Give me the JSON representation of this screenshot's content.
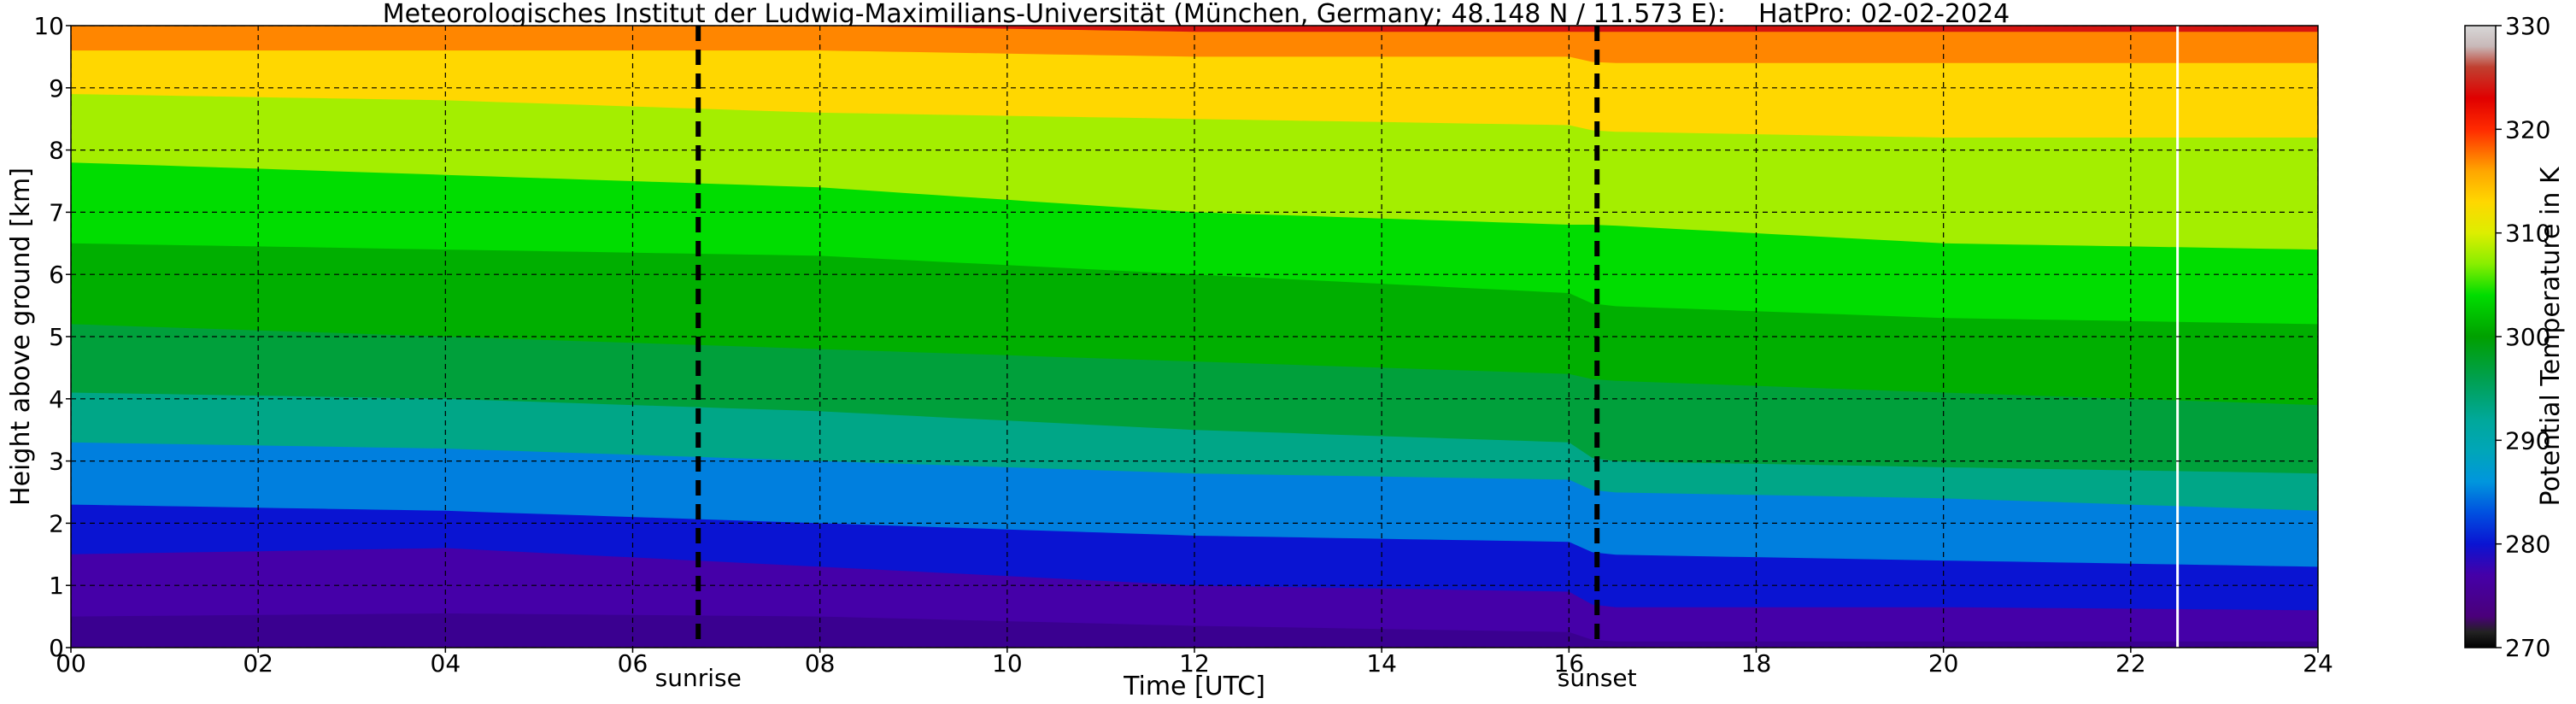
{
  "chart_data": {
    "type": "heatmap",
    "title": "Meteorologisches Institut der Ludwig-Maximilians-Universität (München, Germany; 48.148 N / 11.573 E):    HatPro: 02-02-2024",
    "xlabel": "Time [UTC]",
    "ylabel": "Height above ground [km]",
    "colorbar_label": "Potential Temperature in K",
    "xlim": [
      0,
      24
    ],
    "ylim": [
      0,
      10
    ],
    "clim": [
      270,
      330
    ],
    "x_ticks": [
      "00",
      "02",
      "04",
      "06",
      "08",
      "10",
      "12",
      "14",
      "16",
      "18",
      "20",
      "22",
      "24"
    ],
    "y_ticks": [
      "0",
      "1",
      "2",
      "3",
      "4",
      "5",
      "6",
      "7",
      "8",
      "9",
      "10"
    ],
    "colorbar_ticks": [
      "270",
      "280",
      "290",
      "300",
      "310",
      "320",
      "330"
    ],
    "grid": true,
    "events": [
      {
        "label": "sunrise",
        "time": 6.7
      },
      {
        "label": "sunset",
        "time": 16.3
      }
    ],
    "data_gap_time": 22.5,
    "colormap": [
      {
        "value": 270,
        "color": "#000000"
      },
      {
        "value": 271.5,
        "color": "#222222"
      },
      {
        "value": 273,
        "color": "#4a007a"
      },
      {
        "value": 277,
        "color": "#4500a8"
      },
      {
        "value": 280,
        "color": "#0a14d2"
      },
      {
        "value": 283,
        "color": "#0050e0"
      },
      {
        "value": 286,
        "color": "#0096dd"
      },
      {
        "value": 289,
        "color": "#00a6b8"
      },
      {
        "value": 292,
        "color": "#00a89a"
      },
      {
        "value": 296,
        "color": "#00a04e"
      },
      {
        "value": 300,
        "color": "#00a000"
      },
      {
        "value": 304,
        "color": "#00dd00"
      },
      {
        "value": 307,
        "color": "#88ee00"
      },
      {
        "value": 310,
        "color": "#ddee00"
      },
      {
        "value": 313,
        "color": "#ffd700"
      },
      {
        "value": 316,
        "color": "#ffa500"
      },
      {
        "value": 320,
        "color": "#ff2a00"
      },
      {
        "value": 323,
        "color": "#e00000"
      },
      {
        "value": 326,
        "color": "#c04030"
      },
      {
        "value": 328,
        "color": "#c8b8b8"
      },
      {
        "value": 330,
        "color": "#d8d8d8"
      }
    ],
    "isentropes": [
      {
        "theta": 277,
        "x": [
          0,
          4,
          8,
          12,
          16,
          16.3,
          20,
          24
        ],
        "h": [
          0.5,
          0.55,
          0.5,
          0.35,
          0.25,
          0.1,
          0.1,
          0.1
        ]
      },
      {
        "theta": 280,
        "x": [
          0,
          4,
          8,
          12,
          16,
          16.3,
          20,
          24
        ],
        "h": [
          1.5,
          1.6,
          1.3,
          1.0,
          0.9,
          0.65,
          0.65,
          0.6
        ]
      },
      {
        "theta": 285,
        "x": [
          0,
          4,
          8,
          12,
          16,
          16.3,
          20,
          24
        ],
        "h": [
          2.3,
          2.2,
          2.0,
          1.8,
          1.7,
          1.5,
          1.4,
          1.3
        ]
      },
      {
        "theta": 293,
        "x": [
          0,
          4,
          8,
          12,
          16,
          16.3,
          20,
          24
        ],
        "h": [
          3.3,
          3.2,
          3.0,
          2.8,
          2.7,
          2.5,
          2.4,
          2.2
        ]
      },
      {
        "theta": 297,
        "x": [
          0,
          4,
          8,
          12,
          16,
          16.3,
          20,
          24
        ],
        "h": [
          4.1,
          4.0,
          3.8,
          3.5,
          3.3,
          3.0,
          2.9,
          2.8
        ]
      },
      {
        "theta": 301,
        "x": [
          0,
          4,
          8,
          12,
          16,
          16.3,
          20,
          24
        ],
        "h": [
          5.2,
          5.0,
          4.8,
          4.6,
          4.4,
          4.3,
          4.1,
          3.9
        ]
      },
      {
        "theta": 304,
        "x": [
          0,
          4,
          8,
          12,
          16,
          16.3,
          20,
          24
        ],
        "h": [
          6.5,
          6.4,
          6.3,
          6.0,
          5.7,
          5.5,
          5.3,
          5.2
        ]
      },
      {
        "theta": 308,
        "x": [
          0,
          4,
          8,
          12,
          16,
          16.3,
          20,
          24
        ],
        "h": [
          7.8,
          7.6,
          7.4,
          7.0,
          6.8,
          6.8,
          6.5,
          6.4
        ]
      },
      {
        "theta": 313,
        "x": [
          0,
          4,
          8,
          12,
          16,
          16.3,
          20,
          24
        ],
        "h": [
          8.9,
          8.8,
          8.6,
          8.5,
          8.4,
          8.3,
          8.2,
          8.2
        ]
      },
      {
        "theta": 317,
        "x": [
          0,
          4,
          8,
          12,
          16,
          16.3,
          20,
          24
        ],
        "h": [
          9.6,
          9.6,
          9.6,
          9.5,
          9.5,
          9.4,
          9.4,
          9.4
        ]
      },
      {
        "theta": 324,
        "x": [
          0,
          4,
          8,
          12,
          16,
          16.3,
          20,
          24
        ],
        "h": [
          10.0,
          10.0,
          10.0,
          9.9,
          9.9,
          9.9,
          9.9,
          9.9
        ]
      }
    ]
  }
}
